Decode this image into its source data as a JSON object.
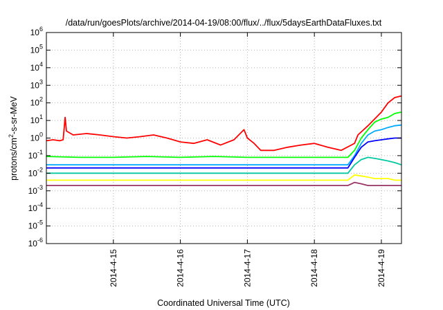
{
  "chart_data": {
    "type": "line",
    "title": "/data/run/goesPlots/archive/2014-04-19/08:00/flux/../flux/5daysEarthDataFluxes.txt",
    "xlabel": "Coordinated Universal Time (UTC)",
    "ylabel": {
      "base": "protons/cm",
      "sup": "2",
      "rest": "-s-sr-MeV"
    },
    "y_scale": "log",
    "ylim": [
      1e-06,
      1000000.0
    ],
    "xlim_days": [
      0,
      5.3
    ],
    "y_ticks": [
      {
        "exp": -6,
        "base": "10",
        "sup": "-6"
      },
      {
        "exp": -5,
        "base": "10",
        "sup": "-5"
      },
      {
        "exp": -4,
        "base": "10",
        "sup": "-4"
      },
      {
        "exp": -3,
        "base": "10",
        "sup": "-3"
      },
      {
        "exp": -2,
        "base": "10",
        "sup": "-2"
      },
      {
        "exp": -1,
        "base": "10",
        "sup": "-1"
      },
      {
        "exp": 0,
        "base": "10",
        "sup": "0"
      },
      {
        "exp": 1,
        "base": "10",
        "sup": "1"
      },
      {
        "exp": 2,
        "base": "10",
        "sup": "2"
      },
      {
        "exp": 3,
        "base": "10",
        "sup": "3"
      },
      {
        "exp": 4,
        "base": "10",
        "sup": "4"
      },
      {
        "exp": 5,
        "base": "10",
        "sup": "5"
      },
      {
        "exp": 6,
        "base": "10",
        "sup": "6"
      }
    ],
    "x_ticks": [
      {
        "day": 1,
        "label": "2014-4-15"
      },
      {
        "day": 2,
        "label": "2014-4-16"
      },
      {
        "day": 3,
        "label": "2014-4-17"
      },
      {
        "day": 4,
        "label": "2014-4-18"
      },
      {
        "day": 5,
        "label": "2014-4-19"
      }
    ],
    "grid": true,
    "legend": "none",
    "series": [
      {
        "color": "#ff0000",
        "x": [
          0.0,
          0.1,
          0.2,
          0.25,
          0.28,
          0.3,
          0.4,
          0.6,
          0.8,
          1.0,
          1.2,
          1.4,
          1.6,
          1.8,
          2.0,
          2.2,
          2.4,
          2.6,
          2.8,
          2.95,
          3.0,
          3.1,
          3.2,
          3.4,
          3.6,
          3.8,
          4.0,
          4.2,
          4.4,
          4.6,
          4.65,
          4.8,
          5.0,
          5.1,
          5.2,
          5.3
        ],
        "y": [
          0.7,
          0.8,
          0.7,
          0.8,
          15,
          2.5,
          1.5,
          1.8,
          1.5,
          1.2,
          1.0,
          1.2,
          1.5,
          1.0,
          0.6,
          0.5,
          0.8,
          0.4,
          0.8,
          3.0,
          1.0,
          0.5,
          0.2,
          0.2,
          0.3,
          0.4,
          0.5,
          0.3,
          0.2,
          0.5,
          1.5,
          5.0,
          30,
          100,
          200,
          250
        ]
      },
      {
        "color": "#00ff00",
        "x": [
          0.0,
          0.5,
          1.0,
          1.5,
          2.0,
          2.5,
          3.0,
          3.5,
          4.0,
          4.5,
          4.6,
          4.7,
          4.8,
          4.9,
          5.0,
          5.1,
          5.2,
          5.3
        ],
        "y": [
          0.09,
          0.08,
          0.08,
          0.09,
          0.08,
          0.09,
          0.08,
          0.08,
          0.08,
          0.08,
          0.2,
          1.0,
          3.0,
          8.0,
          12,
          15,
          25,
          30
        ]
      },
      {
        "color": "#00aaff",
        "x": [
          0.0,
          0.5,
          1.0,
          1.5,
          2.0,
          2.5,
          3.0,
          3.5,
          4.0,
          4.5,
          4.6,
          4.7,
          4.8,
          4.9,
          5.0,
          5.1,
          5.2,
          5.3
        ],
        "y": [
          0.03,
          0.03,
          0.03,
          0.03,
          0.03,
          0.03,
          0.03,
          0.03,
          0.03,
          0.03,
          0.1,
          0.5,
          1.5,
          2.5,
          3.0,
          4.0,
          5.0,
          5.5
        ]
      },
      {
        "color": "#0000ff",
        "x": [
          0.0,
          0.5,
          1.0,
          1.5,
          2.0,
          2.5,
          3.0,
          3.5,
          4.0,
          4.5,
          4.6,
          4.7,
          4.8,
          4.9,
          5.0,
          5.1,
          5.2,
          5.3
        ],
        "y": [
          0.02,
          0.02,
          0.02,
          0.02,
          0.02,
          0.02,
          0.02,
          0.02,
          0.02,
          0.02,
          0.08,
          0.3,
          0.6,
          0.7,
          0.8,
          0.9,
          1.0,
          1.0
        ]
      },
      {
        "color": "#00c8a0",
        "x": [
          0.0,
          0.5,
          1.0,
          1.5,
          2.0,
          2.5,
          3.0,
          3.5,
          4.0,
          4.5,
          4.6,
          4.7,
          4.8,
          4.9,
          5.0,
          5.1,
          5.2,
          5.3
        ],
        "y": [
          0.01,
          0.01,
          0.01,
          0.01,
          0.01,
          0.01,
          0.01,
          0.01,
          0.01,
          0.01,
          0.03,
          0.06,
          0.08,
          0.07,
          0.06,
          0.05,
          0.04,
          0.03
        ]
      },
      {
        "color": "#ffff00",
        "x": [
          0.0,
          0.5,
          1.0,
          1.5,
          2.0,
          2.5,
          3.0,
          3.5,
          4.0,
          4.5,
          4.6,
          4.7,
          4.8,
          4.9,
          5.0,
          5.1,
          5.2,
          5.3
        ],
        "y": [
          0.004,
          0.004,
          0.004,
          0.004,
          0.004,
          0.004,
          0.004,
          0.004,
          0.004,
          0.004,
          0.008,
          0.007,
          0.006,
          0.005,
          0.005,
          0.005,
          0.004,
          0.004
        ]
      },
      {
        "color": "#993366",
        "x": [
          0.0,
          0.5,
          1.0,
          1.5,
          2.0,
          2.5,
          3.0,
          3.5,
          4.0,
          4.5,
          4.6,
          4.7,
          4.8,
          4.9,
          5.0,
          5.1,
          5.2,
          5.3
        ],
        "y": [
          0.002,
          0.002,
          0.002,
          0.002,
          0.002,
          0.002,
          0.002,
          0.002,
          0.002,
          0.002,
          0.003,
          0.0025,
          0.002,
          0.002,
          0.002,
          0.002,
          0.002,
          0.002
        ]
      }
    ]
  }
}
